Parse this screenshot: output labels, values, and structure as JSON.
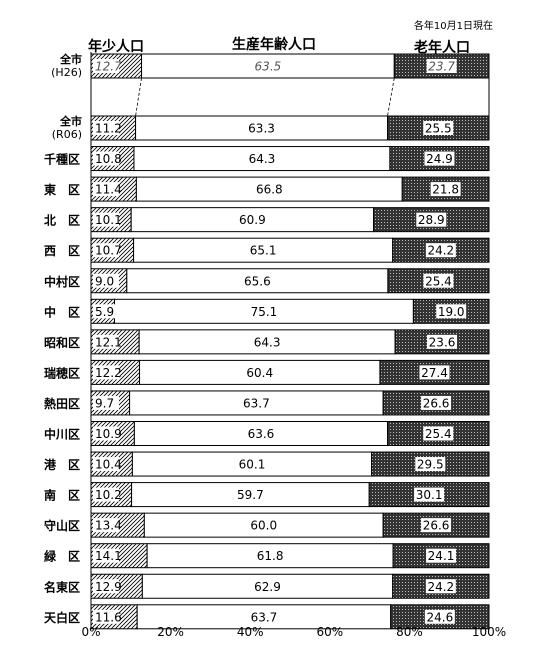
{
  "note": "各年10月1日現在",
  "headers": {
    "youth": "年少人口",
    "working": "生産年齢人口",
    "elderly": "老年人口"
  },
  "colors": {
    "working_fill": "#ffffff",
    "elderly_fill": "#333333",
    "youth_hatch": "#000000",
    "reference_text": "#555555"
  },
  "chart_data": {
    "type": "bar",
    "orientation": "horizontal",
    "stacked": "100%",
    "xlim": [
      0,
      100
    ],
    "x_ticks": [
      "0%",
      "20%",
      "40%",
      "60%",
      "80%",
      "100%"
    ],
    "series": [
      {
        "name": "年少人口",
        "pattern": "diagonal-hatch"
      },
      {
        "name": "生産年齢人口",
        "pattern": "white"
      },
      {
        "name": "老年人口",
        "pattern": "dark-dots"
      }
    ],
    "reference_row": {
      "category": [
        "全市",
        "(H26)"
      ],
      "values": [
        12.7,
        63.5,
        23.7
      ],
      "labels": [
        "12.7",
        "63.5",
        "23.7"
      ]
    },
    "rows": [
      {
        "category": [
          "全市",
          "(R06)"
        ],
        "values": [
          11.2,
          63.3,
          25.5
        ],
        "labels": [
          "11.2",
          "63.3",
          "25.5"
        ]
      },
      {
        "category": [
          "千種区"
        ],
        "values": [
          10.8,
          64.3,
          24.9
        ],
        "labels": [
          "10.8",
          "64.3",
          "24.9"
        ]
      },
      {
        "category": [
          "東　区"
        ],
        "values": [
          11.4,
          66.8,
          21.8
        ],
        "labels": [
          "11.4",
          "66.8",
          "21.8"
        ]
      },
      {
        "category": [
          "北　区"
        ],
        "values": [
          10.1,
          60.9,
          28.9
        ],
        "labels": [
          "10.1",
          "60.9",
          "28.9"
        ]
      },
      {
        "category": [
          "西　区"
        ],
        "values": [
          10.7,
          65.1,
          24.2
        ],
        "labels": [
          "10.7",
          "65.1",
          "24.2"
        ]
      },
      {
        "category": [
          "中村区"
        ],
        "values": [
          9.0,
          65.6,
          25.4
        ],
        "labels": [
          "9.0",
          "65.6",
          "25.4"
        ]
      },
      {
        "category": [
          "中　区"
        ],
        "values": [
          5.9,
          75.1,
          19.0
        ],
        "labels": [
          "5.9",
          "75.1",
          "19.0"
        ]
      },
      {
        "category": [
          "昭和区"
        ],
        "values": [
          12.1,
          64.3,
          23.6
        ],
        "labels": [
          "12.1",
          "64.3",
          "23.6"
        ]
      },
      {
        "category": [
          "瑞穂区"
        ],
        "values": [
          12.2,
          60.4,
          27.4
        ],
        "labels": [
          "12.2",
          "60.4",
          "27.4"
        ]
      },
      {
        "category": [
          "熱田区"
        ],
        "values": [
          9.7,
          63.7,
          26.6
        ],
        "labels": [
          "9.7",
          "63.7",
          "26.6"
        ]
      },
      {
        "category": [
          "中川区"
        ],
        "values": [
          10.9,
          63.6,
          25.4
        ],
        "labels": [
          "10.9",
          "63.6",
          "25.4"
        ]
      },
      {
        "category": [
          "港　区"
        ],
        "values": [
          10.4,
          60.1,
          29.5
        ],
        "labels": [
          "10.4",
          "60.1",
          "29.5"
        ]
      },
      {
        "category": [
          "南　区"
        ],
        "values": [
          10.2,
          59.7,
          30.1
        ],
        "labels": [
          "10.2",
          "59.7",
          "30.1"
        ]
      },
      {
        "category": [
          "守山区"
        ],
        "values": [
          13.4,
          60.0,
          26.6
        ],
        "labels": [
          "13.4",
          "60.0",
          "26.6"
        ]
      },
      {
        "category": [
          "緑　区"
        ],
        "values": [
          14.1,
          61.8,
          24.1
        ],
        "labels": [
          "14.1",
          "61.8",
          "24.1"
        ]
      },
      {
        "category": [
          "名東区"
        ],
        "values": [
          12.9,
          62.9,
          24.2
        ],
        "labels": [
          "12.9",
          "62.9",
          "24.2"
        ]
      },
      {
        "category": [
          "天白区"
        ],
        "values": [
          11.6,
          63.7,
          24.6
        ],
        "labels": [
          "11.6",
          "63.7",
          "24.6"
        ]
      }
    ]
  }
}
